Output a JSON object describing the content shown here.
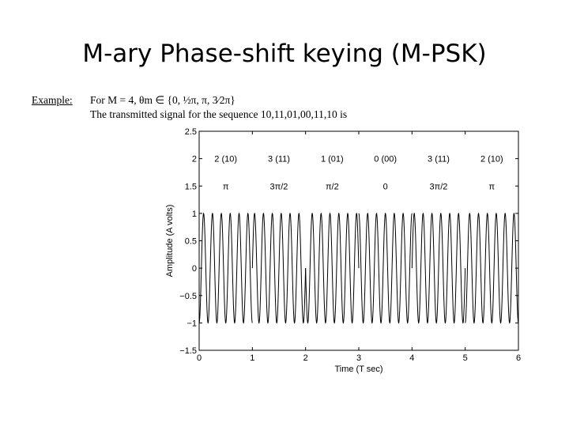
{
  "slide": {
    "title": "M-ary Phase-shift keying (M-PSK)"
  },
  "example": {
    "label": "Example:",
    "line1": "For M = 4, θm ∈ {0, ½π, π, 3⁄2π}",
    "line2": "The transmitted signal for the sequence 10,11,01,00,11,10 is"
  },
  "chart_data": {
    "type": "line",
    "title": "",
    "xlabel": "Time (T sec)",
    "ylabel": "Amplitude (A volts)",
    "xlim": [
      0,
      6
    ],
    "ylim": [
      -1.5,
      2.5
    ],
    "xticks": [
      "0",
      "1",
      "2",
      "3",
      "4",
      "5",
      "6"
    ],
    "yticks": [
      "2.5",
      "2",
      "1.5",
      "1",
      "0.5",
      "0",
      "−0.5",
      "−1",
      "−1.5"
    ],
    "cycles_per_symbol": 6,
    "grid": false,
    "line_color": "#000000",
    "symbols": [
      {
        "label": "2 (10)",
        "phase_label": "π",
        "phase_rad": 3.14159
      },
      {
        "label": "3 (11)",
        "phase_label": "3π/2",
        "phase_rad": 4.71239
      },
      {
        "label": "1 (01)",
        "phase_label": "π/2",
        "phase_rad": 1.5708
      },
      {
        "label": "0 (00)",
        "phase_label": "0",
        "phase_rad": 0
      },
      {
        "label": "3 (11)",
        "phase_label": "3π/2",
        "phase_rad": 4.71239
      },
      {
        "label": "2 (10)",
        "phase_label": "π",
        "phase_rad": 3.14159
      }
    ],
    "label_y": 2,
    "phase_label_y": 1.5
  }
}
